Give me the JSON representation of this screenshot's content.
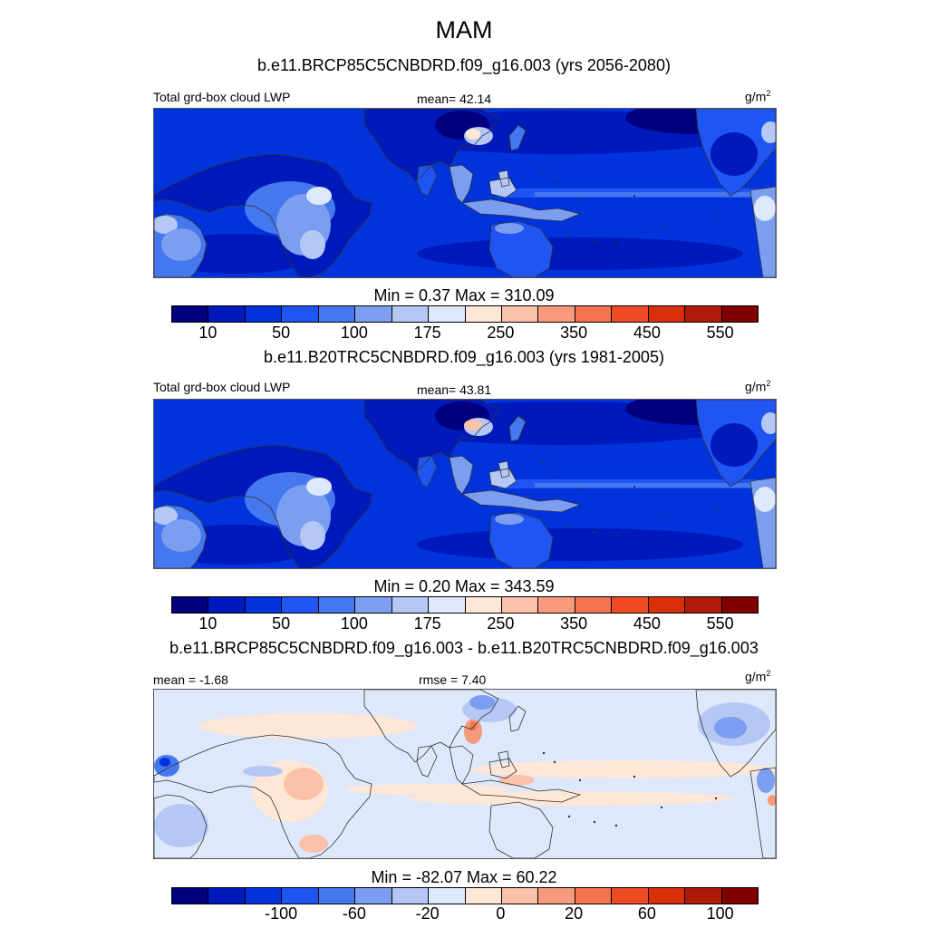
{
  "figure": {
    "title": "MAM",
    "palette": [
      "#00007f",
      "#0019bb",
      "#0133dd",
      "#1f55f2",
      "#4577ee",
      "#7c9ef0",
      "#b5c8f5",
      "#dde8fb",
      "#fee7d6",
      "#fbc1a9",
      "#f79a7c",
      "#f57450",
      "#ef4b22",
      "#d9300b",
      "#af1b08",
      "#800000"
    ]
  },
  "panels": [
    {
      "title": "b.e11.BRCP85C5CNBDRD.f09_g16.003 (yrs 2056-2080)",
      "left_label": "Total grd-box cloud LWP",
      "center_label": "mean=  42.14",
      "unit_base": "g/m",
      "unit_exp": "2",
      "minmax": "Min =   0.37 Max = 310.09",
      "ticks": [
        "10",
        "50",
        "100",
        "175",
        "250",
        "350",
        "450",
        "550"
      ],
      "kind": "lwp",
      "shift": 0
    },
    {
      "title": "b.e11.B20TRC5CNBDRD.f09_g16.003 (yrs 1981-2005)",
      "left_label": "Total grd-box cloud LWP",
      "center_label": "mean=  43.81",
      "unit_base": "g/m",
      "unit_exp": "2",
      "minmax": "Min =   0.20 Max = 343.59",
      "ticks": [
        "10",
        "50",
        "100",
        "175",
        "250",
        "350",
        "450",
        "550"
      ],
      "kind": "lwp",
      "shift": 1
    },
    {
      "title": "b.e11.BRCP85C5CNBDRD.f09_g16.003 - b.e11.B20TRC5CNBDRD.f09_g16.003",
      "left_label": "mean =  -1.68",
      "center_label": "rmse =   7.40",
      "unit_base": "g/m",
      "unit_exp": "2",
      "minmax": "Min = -82.07 Max =  60.22",
      "ticks": [
        "-100",
        "-60",
        "-20",
        "0",
        "20",
        "60",
        "100"
      ],
      "kind": "diff",
      "shift": 0
    }
  ]
}
